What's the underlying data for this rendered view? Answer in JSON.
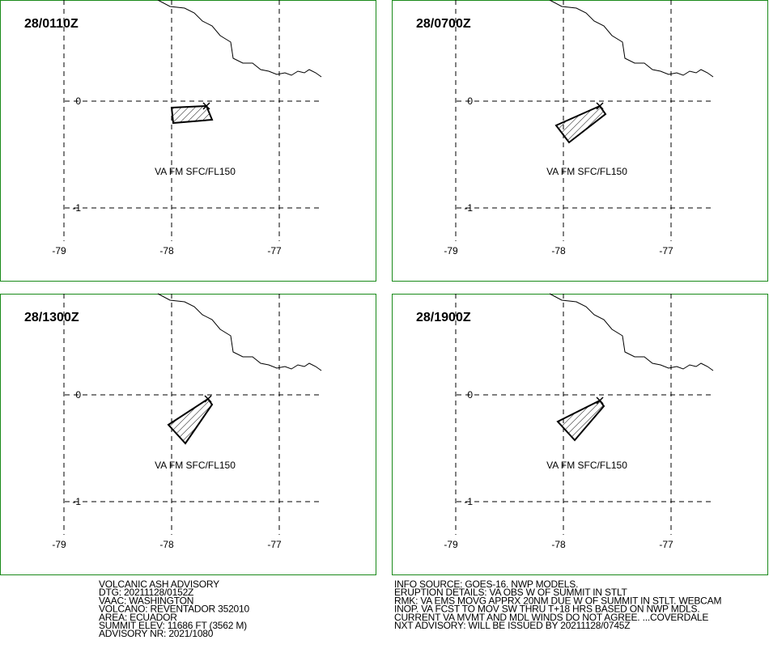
{
  "map": {
    "lon_labels": [
      "-79",
      "-78",
      "-77"
    ],
    "lat_labels": [
      "0",
      "-1"
    ]
  },
  "panels": [
    {
      "time": "28/0110Z",
      "label": "VA FM SFC/FL150"
    },
    {
      "time": "28/0700Z",
      "label": "VA FM SFC/FL150"
    },
    {
      "time": "28/1300Z",
      "label": "VA FM SFC/FL150"
    },
    {
      "time": "28/1900Z",
      "label": "VA FM SFC/FL150"
    }
  ],
  "advisory": {
    "left": [
      "VOLCANIC ASH ADVISORY",
      "DTG: 20211128/0152Z",
      "VAAC: WASHINGTON",
      "VOLCANO: REVENTADOR 352010",
      "AREA: ECUADOR",
      "SUMMIT ELEV: 11686 FT (3562 M)",
      "ADVISORY NR: 2021/1080"
    ],
    "right": [
      "INFO SOURCE: GOES-16. NWP MODELS.",
      "ERUPTION DETAILS: VA OBS W OF SUMMIT IN STLT",
      "RMK: VA EMS MOVG APPRX 20NM DUE W OF SUMMIT IN STLT. WEBCAM",
      "INOP. VA FCST TO MOV SW THRU T+18 HRS BASED ON NWP MDLS.",
      "CURRENT VA MVMT AND MDL WINDS DO NOT AGREE. ...COVERDALE",
      "NXT ADVISORY: WILL BE ISSUED BY 20211128/0745Z"
    ]
  }
}
